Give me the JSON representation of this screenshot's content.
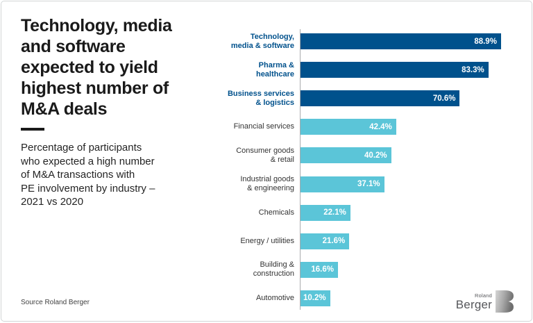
{
  "header": {
    "title": "Technology, media\nand software\nexpected to yield\nhighest number of\nM&A deals",
    "subtitle": "Percentage of participants\nwho expected a high number\nof M&A transactions with\nPE involvement by industry –\n2021 vs 2020"
  },
  "footer": {
    "source": "Source Roland Berger",
    "logo": {
      "top": "Roland",
      "bottom": "Berger",
      "mark": "B"
    }
  },
  "chart_data": {
    "type": "bar",
    "orientation": "horizontal",
    "title": "Percentage of participants who expected a high number of M&A transactions with PE involvement by industry – 2021 vs 2020",
    "unit": "%",
    "xlim": [
      0,
      100
    ],
    "grid": false,
    "legend": "none",
    "categories": [
      "Technology,\nmedia & software",
      "Pharma &\nhealthcare",
      "Business services\n& logistics",
      "Financial services",
      "Consumer goods\n& retail",
      "Industrial goods\n& engineering",
      "Chemicals",
      "Energy / utilities",
      "Building &\nconstruction",
      "Automotive"
    ],
    "values": [
      88.9,
      83.3,
      70.6,
      42.4,
      40.2,
      37.1,
      22.1,
      21.6,
      16.6,
      10.2
    ],
    "value_labels": [
      "88.9%",
      "83.3%",
      "70.6%",
      "42.4%",
      "40.2%",
      "37.1%",
      "22.1%",
      "21.6%",
      "16.6%",
      "10.2%"
    ],
    "highlighted": [
      true,
      true,
      true,
      false,
      false,
      false,
      false,
      false,
      false,
      false
    ],
    "colors": {
      "highlight": "#00518C",
      "normal": "#5BC5D8",
      "value_label": "#FFFFFF",
      "highlight_label_text": "#00518C",
      "normal_label_text": "#333333",
      "axis_line": "#A9ABAD"
    }
  }
}
